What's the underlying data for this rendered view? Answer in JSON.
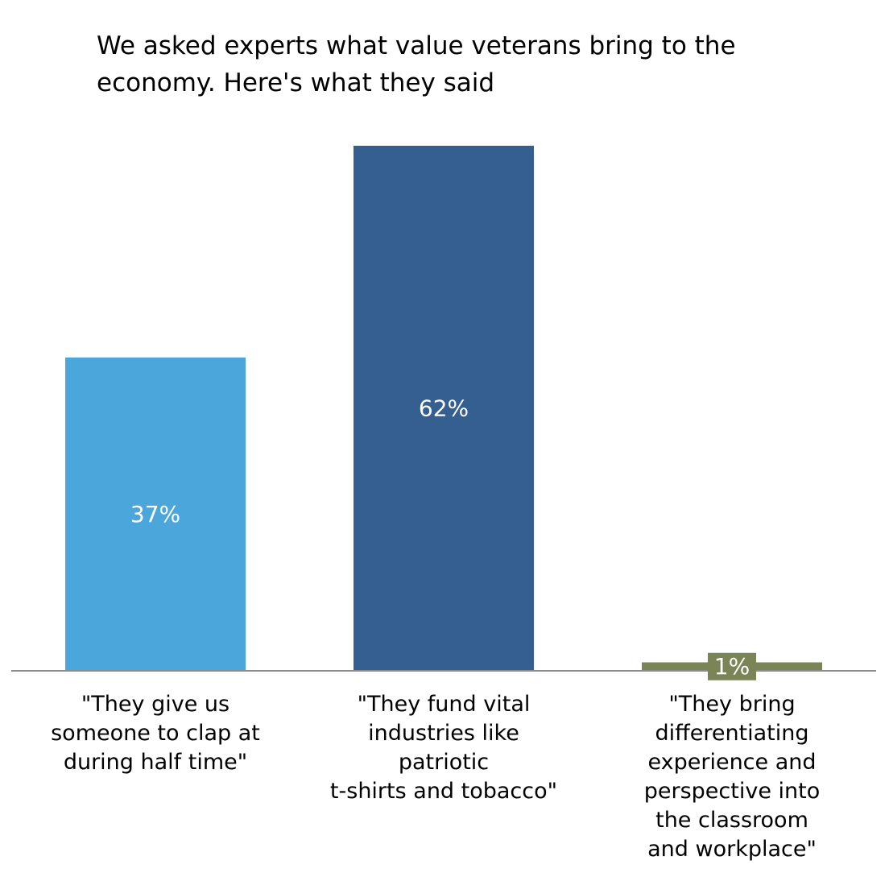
{
  "chart_data": {
    "type": "bar",
    "title": "We asked experts what value veterans bring to the\neconomy.  Here's what they said",
    "categories": [
      "\"They give us\nsomeone to clap at\nduring half time\"",
      "\"They fund vital\nindustries like patriotic\nt-shirts and tobacco\"",
      "\"They bring\ndifferentiating\nexperience and\nperspective into\nthe classroom\nand workplace\""
    ],
    "values": [
      37,
      62,
      1
    ],
    "data_labels": [
      "37%",
      "62%",
      "1%"
    ],
    "colors": [
      "#4ba6db",
      "#355e91",
      "#7b8457"
    ],
    "ylim": [
      0,
      62
    ],
    "grid": false,
    "legend": "none"
  }
}
